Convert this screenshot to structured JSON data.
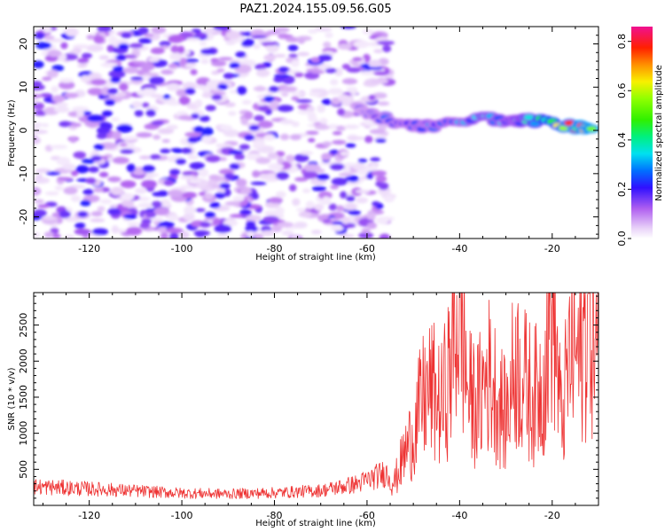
{
  "title": "PAZ1.2024.155.09.56.G05",
  "chart_data": [
    {
      "type": "heatmap",
      "xlabel": "Height of straight line (km)",
      "ylabel": "Frequency (Hz)",
      "xlim": [
        -132,
        -10
      ],
      "ylim": [
        -25,
        24
      ],
      "xticks": [
        -120,
        -100,
        -80,
        -60,
        -40,
        -20
      ],
      "yticks": [
        -20,
        -10,
        0,
        10,
        20
      ],
      "colormap": "gist_ncar_r (white → purple → blue → cyan → green → yellow → orange → red → pink)",
      "colorbar": {
        "label": "Normalized spectral amplitude",
        "range": [
          0,
          0.86
        ],
        "ticks": [
          0.0,
          0.2,
          0.4,
          0.6,
          0.8
        ]
      },
      "features": [
        {
          "description": "scattered low-amplitude noise patches",
          "x_range": [
            -132,
            -55
          ],
          "y_range": [
            -25,
            24
          ],
          "amplitude": 0.1
        },
        {
          "description": "signal track",
          "points": [
            {
              "x": -62,
              "y": 5,
              "amplitude": 0.2
            },
            {
              "x": -58,
              "y": 3,
              "amplitude": 0.25
            },
            {
              "x": -50,
              "y": 1,
              "amplitude": 0.3
            },
            {
              "x": -45,
              "y": 1,
              "amplitude": 0.3
            },
            {
              "x": -35,
              "y": 3,
              "amplitude": 0.4
            },
            {
              "x": -28,
              "y": 2,
              "amplitude": 0.35
            },
            {
              "x": -25,
              "y": 2.5,
              "amplitude": 0.45
            },
            {
              "x": -15,
              "y": 0.8,
              "amplitude": 0.85
            },
            {
              "x": -11,
              "y": 0.8,
              "amplitude": 0.85
            }
          ]
        }
      ]
    },
    {
      "type": "line",
      "xlabel": "Height of straight line (km)",
      "ylabel": "SNR (10 * v/v)",
      "xlim": [
        -132,
        -10
      ],
      "ylim": [
        0,
        2950
      ],
      "xticks": [
        -120,
        -100,
        -80,
        -60,
        -40,
        -20
      ],
      "yticks": [
        500,
        1000,
        1500,
        2000,
        2500
      ],
      "color": "#ee3333",
      "series": [
        {
          "x": [
            -132,
            -120,
            -110,
            -100,
            -90,
            -80,
            -70,
            -62,
            -56,
            -54,
            -52,
            -50,
            -48,
            -46,
            -44,
            -42,
            -40,
            -38,
            -36,
            -34,
            -32,
            -30,
            -28,
            -26,
            -24,
            -22,
            -20,
            -18,
            -16,
            -14,
            -12,
            -10
          ],
          "values": [
            260,
            230,
            200,
            170,
            160,
            175,
            205,
            300,
            450,
            330,
            700,
            1000,
            1450,
            1600,
            1350,
            1900,
            2800,
            1500,
            1400,
            1850,
            1550,
            1200,
            2000,
            1700,
            1500,
            1700,
            2950,
            1100,
            2200,
            2000,
            2700,
            2000
          ]
        }
      ]
    }
  ]
}
